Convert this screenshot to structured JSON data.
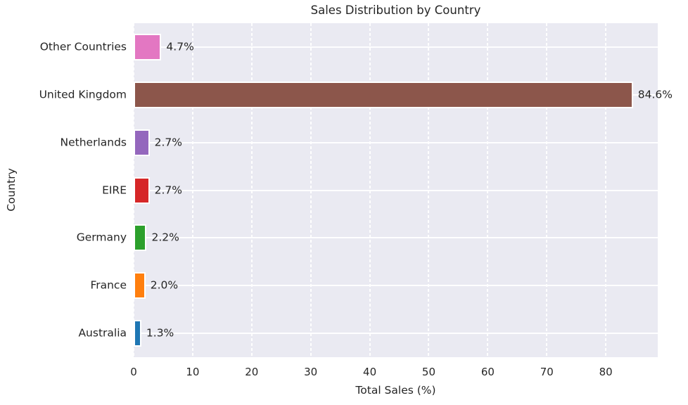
{
  "chart_data": {
    "type": "bar",
    "orientation": "horizontal",
    "title": "Sales Distribution by Country",
    "xlabel": "Total Sales (%)",
    "ylabel": "Country",
    "categories": [
      "Other Countries",
      "United Kingdom",
      "Netherlands",
      "EIRE",
      "Germany",
      "France",
      "Australia"
    ],
    "values": [
      4.7,
      84.6,
      2.7,
      2.7,
      2.2,
      2.0,
      1.3
    ],
    "bar_labels": [
      "4.7%",
      "84.6%",
      "2.7%",
      "2.7%",
      "2.2%",
      "2.0%",
      "1.3%"
    ],
    "bar_colors": [
      "#e377c2",
      "#8c564b",
      "#9467bd",
      "#d62728",
      "#2ca02c",
      "#ff7f0e",
      "#1f77b4"
    ],
    "x_ticks": [
      "0",
      "10",
      "20",
      "30",
      "40",
      "50",
      "60",
      "70",
      "80"
    ],
    "x_tick_values": [
      0,
      10,
      20,
      30,
      40,
      50,
      60,
      70,
      80
    ],
    "xlim": [
      0,
      88.8
    ],
    "grid": true,
    "legend": false,
    "plot_bg_color": "#eaeaf2",
    "grid_color": "#ffffff",
    "text_color": "#262626"
  }
}
